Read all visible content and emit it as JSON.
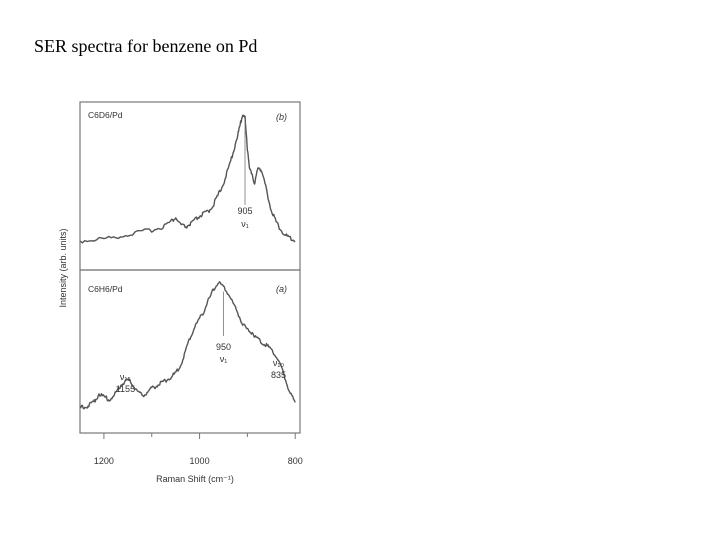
{
  "slide": {
    "title": "SER spectra for benzene on Pd"
  },
  "colors": {
    "trace": "#555555",
    "frame": "#777777",
    "text": "#333333"
  },
  "chart_data": {
    "type": "line",
    "x_axis_reversed": true,
    "xlabel": "Raman Shift (cm⁻¹)",
    "ylabel": "Intensity (arb. units)",
    "xlim": [
      1250,
      790
    ],
    "xticks": [
      1200,
      1000,
      800
    ],
    "xtick_labels": [
      "1200",
      "1000",
      "800"
    ],
    "panels": [
      {
        "id": "b",
        "sample": "C6D6/Pd",
        "tag": "(b)",
        "ylim": [
          0,
          100
        ],
        "x": [
          1250,
          1220,
          1190,
          1160,
          1130,
          1100,
          1080,
          1060,
          1050,
          1040,
          1030,
          1020,
          1010,
          1000,
          990,
          980,
          970,
          960,
          950,
          940,
          930,
          920,
          915,
          910,
          905,
          900,
          895,
          890,
          885,
          880,
          875,
          870,
          860,
          850,
          840,
          830,
          820,
          810,
          800
        ],
        "y": [
          8,
          9,
          10,
          12,
          14,
          16,
          18,
          22,
          25,
          20,
          18,
          20,
          23,
          26,
          28,
          30,
          35,
          42,
          50,
          60,
          72,
          85,
          92,
          100,
          97,
          75,
          60,
          55,
          50,
          58,
          62,
          58,
          45,
          30,
          22,
          16,
          12,
          10,
          8
        ],
        "annotations": [
          {
            "text": "905",
            "x": 905
          },
          {
            "text": "ν₁",
            "x": 905
          }
        ]
      },
      {
        "id": "a",
        "sample": "C6H6/Pd",
        "tag": "(a)",
        "ylim": [
          0,
          100
        ],
        "x": [
          1250,
          1240,
          1230,
          1220,
          1210,
          1200,
          1190,
          1180,
          1170,
          1160,
          1150,
          1140,
          1130,
          1120,
          1110,
          1100,
          1090,
          1080,
          1070,
          1060,
          1050,
          1040,
          1030,
          1020,
          1010,
          1000,
          990,
          980,
          970,
          960,
          950,
          940,
          930,
          920,
          910,
          900,
          890,
          880,
          870,
          860,
          850,
          840,
          830,
          820,
          810,
          800
        ],
        "y": [
          10,
          11,
          12,
          15,
          20,
          18,
          16,
          18,
          24,
          28,
          30,
          27,
          22,
          19,
          21,
          24,
          26,
          28,
          30,
          32,
          35,
          40,
          50,
          60,
          68,
          74,
          80,
          88,
          95,
          100,
          96,
          92,
          85,
          78,
          70,
          66,
          64,
          60,
          57,
          55,
          52,
          47,
          40,
          30,
          20,
          14
        ],
        "annotations": [
          {
            "text": "ν₁₅",
            "x": 1155
          },
          {
            "text": "1155",
            "x": 1155
          },
          {
            "text": "950",
            "x": 950
          },
          {
            "text": "ν₁",
            "x": 950
          },
          {
            "text": "ν₁₀",
            "x": 835
          },
          {
            "text": "835",
            "x": 835
          }
        ]
      }
    ]
  }
}
